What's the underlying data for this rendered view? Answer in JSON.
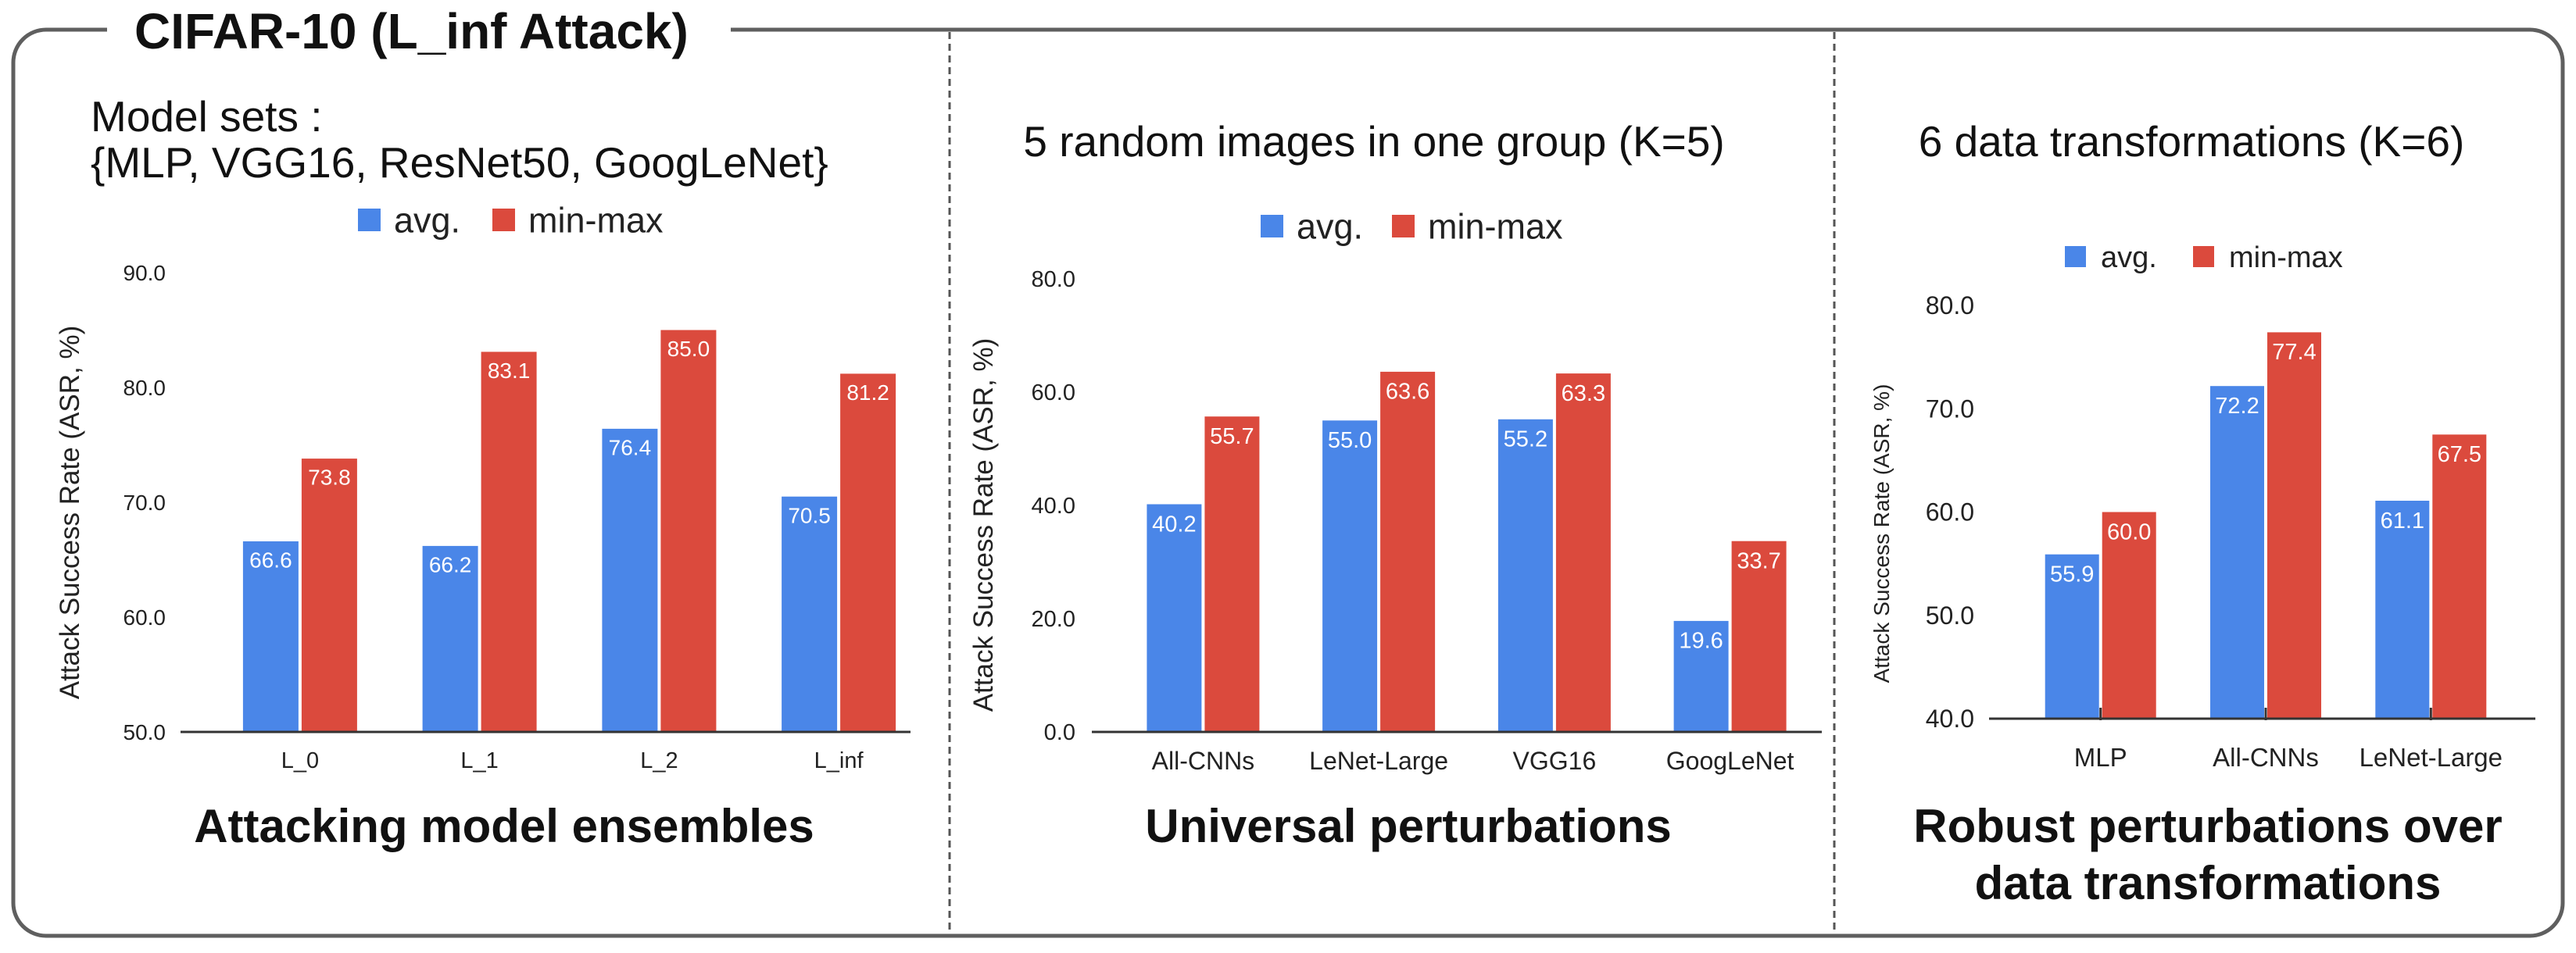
{
  "figure_title": "CIFAR-10 (L_inf Attack)",
  "chart_data": [
    {
      "type": "bar",
      "title_lines": [
        "Model sets :",
        "{MLP, VGG16, ResNet50, GoogLeNet}"
      ],
      "caption_lines": [
        "Attacking model ensembles"
      ],
      "categories": [
        "L_0",
        "L_1",
        "L_2",
        "L_inf"
      ],
      "series": [
        {
          "name": "avg.",
          "color": "#4a86e8",
          "values": [
            66.6,
            66.2,
            76.4,
            70.5
          ]
        },
        {
          "name": "min-max",
          "color": "#db4a3d",
          "values": [
            73.8,
            83.1,
            85.0,
            81.2
          ]
        }
      ],
      "ylabel": "Attack Success Rate (ASR, %)",
      "ylim": [
        50,
        90
      ],
      "yticks": [
        50,
        60,
        70,
        80,
        90
      ],
      "legend": "top",
      "grid": false,
      "data_labels": true,
      "x_tick_marks": false
    },
    {
      "type": "bar",
      "title_lines": [
        "5 random images in one group (K=5)"
      ],
      "caption_lines": [
        "Universal perturbations"
      ],
      "categories": [
        "All-CNNs",
        "LeNet-Large",
        "VGG16",
        "GoogLeNet"
      ],
      "series": [
        {
          "name": "avg.",
          "color": "#4a86e8",
          "values": [
            40.2,
            55.0,
            55.2,
            19.6
          ]
        },
        {
          "name": "min-max",
          "color": "#db4a3d",
          "values": [
            55.7,
            63.6,
            63.3,
            33.7
          ]
        }
      ],
      "ylabel": "Attack Success Rate (ASR, %)",
      "ylim": [
        0,
        80
      ],
      "yticks": [
        0,
        20,
        40,
        60,
        80
      ],
      "legend": "top",
      "grid": false,
      "data_labels": true,
      "x_tick_marks": false
    },
    {
      "type": "bar",
      "title_lines": [
        "6 data transformations (K=6)"
      ],
      "caption_lines": [
        "Robust perturbations over",
        "data transformations"
      ],
      "categories": [
        "MLP",
        "All-CNNs",
        "LeNet-Large"
      ],
      "series": [
        {
          "name": "avg.",
          "color": "#4a86e8",
          "values": [
            55.9,
            72.2,
            61.1
          ]
        },
        {
          "name": "min-max",
          "color": "#db4a3d",
          "values": [
            60.0,
            77.4,
            67.5
          ]
        }
      ],
      "ylabel": "Attack Success Rate (ASR, %)",
      "ylim": [
        40,
        80
      ],
      "yticks": [
        40,
        50,
        60,
        70,
        80
      ],
      "legend": "top",
      "grid": false,
      "data_labels": true,
      "x_tick_marks": true
    }
  ]
}
